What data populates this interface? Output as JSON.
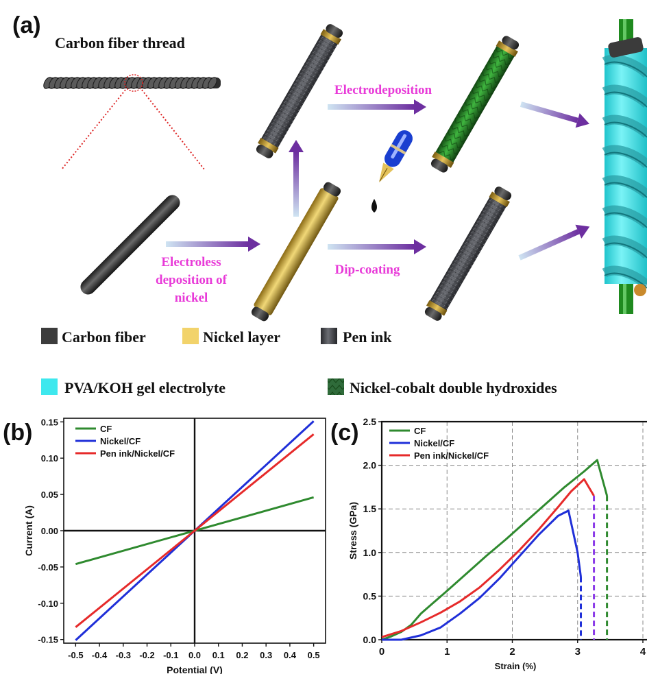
{
  "panel_a": {
    "label": "(a)",
    "thread_title": "Carbon fiber thread",
    "step_electroless": [
      "Electroless",
      "deposition of",
      "nickel"
    ],
    "step_dip": "Dip-coating",
    "step_electrodep": "Electrodeposition",
    "legend": [
      {
        "label": "Carbon fiber",
        "color": "#4a4a4a"
      },
      {
        "label": "Nickel layer",
        "color": "#f2d36b"
      },
      {
        "label": "Pen ink",
        "color": "#4d4f55"
      },
      {
        "label": "PVA/KOH gel electrolyte",
        "color": "#3ee8ee"
      },
      {
        "label": "Nickel-cobalt double hydroxides",
        "color": "#2f6b3a"
      }
    ],
    "colors": {
      "step_text": "#e83ad8",
      "arrow": "#7a3ca0",
      "fiber": "#3a3a3a",
      "nickel": "#d8b43a",
      "ink": "#4a4c52",
      "nico": "#2c8a2c",
      "gel": "#33e6ee"
    }
  },
  "chart_data": [
    {
      "panel_label": "(b)",
      "type": "line",
      "xlabel": "Potential (V)",
      "ylabel": "Current (A)",
      "xlim": [
        -0.55,
        0.55
      ],
      "ylim": [
        -0.155,
        0.155
      ],
      "xticks": [
        "-0.5",
        "-0.4",
        "-0.3",
        "-0.2",
        "-0.1",
        "0.0",
        "0.1",
        "0.2",
        "0.3",
        "0.4",
        "0.5"
      ],
      "yticks": [
        "-0.15",
        "-0.10",
        "-0.05",
        "0.00",
        "0.05",
        "0.10",
        "0.15"
      ],
      "legend_position": "top-left",
      "series": [
        {
          "name": "CF",
          "color": "#2f8a2f",
          "x": [
            -0.5,
            0.5
          ],
          "y": [
            -0.046,
            0.046
          ]
        },
        {
          "name": "Nickel/CF",
          "color": "#1f2fd8",
          "x": [
            -0.5,
            0.5
          ],
          "y": [
            -0.151,
            0.151
          ]
        },
        {
          "name": "Pen ink/Nickel/CF",
          "color": "#e62a2a",
          "x": [
            -0.5,
            0.5
          ],
          "y": [
            -0.133,
            0.133
          ]
        }
      ]
    },
    {
      "panel_label": "(c)",
      "type": "line",
      "xlabel": "Strain (%)",
      "ylabel": "Stress (GPa)",
      "xlim": [
        0,
        4
      ],
      "ylim": [
        0,
        2.5
      ],
      "xticks": [
        "0",
        "1",
        "2",
        "3",
        "4"
      ],
      "yticks": [
        "0.0",
        "0.5",
        "1.0",
        "1.5",
        "2.0",
        "2.5"
      ],
      "grid": true,
      "legend_position": "top-left",
      "series": [
        {
          "name": "CF",
          "color": "#2f8a2f",
          "x": [
            0,
            0.15,
            0.3,
            0.45,
            0.6,
            0.8,
            1.0,
            1.3,
            1.6,
            1.9,
            2.2,
            2.5,
            2.8,
            3.1,
            3.3,
            3.45
          ],
          "y": [
            0,
            0.04,
            0.09,
            0.17,
            0.3,
            0.43,
            0.56,
            0.76,
            0.96,
            1.15,
            1.35,
            1.55,
            1.75,
            1.93,
            2.06,
            1.65
          ],
          "fracture": {
            "x": 3.45,
            "y_top": 1.65
          }
        },
        {
          "name": "Nickel/CF",
          "color": "#1f2fd8",
          "x": [
            0,
            0.3,
            0.6,
            0.9,
            1.2,
            1.5,
            1.8,
            2.1,
            2.4,
            2.7,
            2.86,
            3.0,
            3.05
          ],
          "y": [
            0,
            0.0,
            0.05,
            0.14,
            0.3,
            0.48,
            0.7,
            0.95,
            1.2,
            1.42,
            1.48,
            1.0,
            0.72
          ],
          "fracture": {
            "x": 3.05,
            "y_top": 0.72
          }
        },
        {
          "name": "Pen ink/Nickel/CF",
          "color": "#e62a2a",
          "x": [
            0,
            0.3,
            0.6,
            0.9,
            1.2,
            1.5,
            1.8,
            2.1,
            2.4,
            2.7,
            2.9,
            3.1,
            3.25
          ],
          "y": [
            0.03,
            0.1,
            0.2,
            0.31,
            0.44,
            0.6,
            0.8,
            1.02,
            1.26,
            1.52,
            1.7,
            1.84,
            1.65
          ],
          "fracture": {
            "x": 3.25,
            "y_top": 1.65
          }
        }
      ]
    }
  ]
}
